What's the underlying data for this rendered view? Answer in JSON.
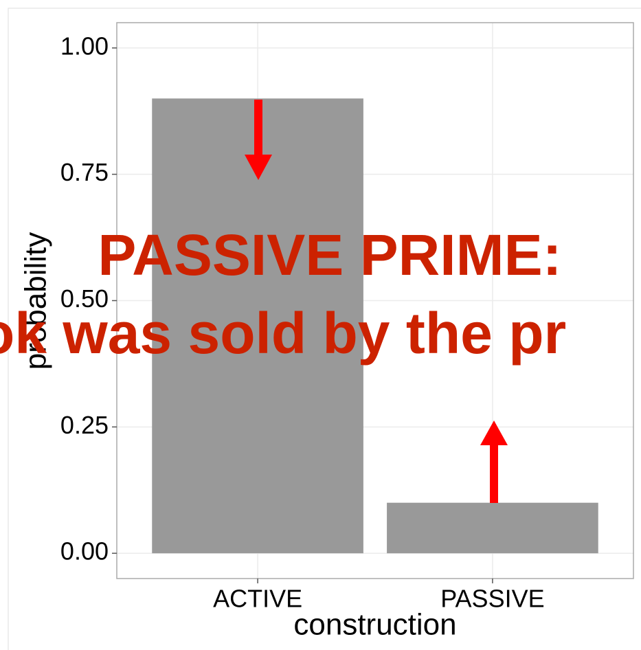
{
  "chart_data": {
    "type": "bar",
    "categories": [
      "ACTIVE",
      "PASSIVE"
    ],
    "values": [
      0.9,
      0.1
    ],
    "color": "#999999",
    "ylim": [
      -0.05,
      1.05
    ],
    "yticks": [
      {
        "value": 0,
        "label": "0.00"
      },
      {
        "value": 0.25,
        "label": "0.25"
      },
      {
        "value": 0.5,
        "label": "0.50"
      },
      {
        "value": 0.75,
        "label": "0.75"
      },
      {
        "value": 1,
        "label": "1.00"
      }
    ],
    "grid": true,
    "xlabel": "construction",
    "ylabel": "probability",
    "annotations": [
      "PASSIVE PRIME:",
      "ok was sold by the pr"
    ]
  }
}
